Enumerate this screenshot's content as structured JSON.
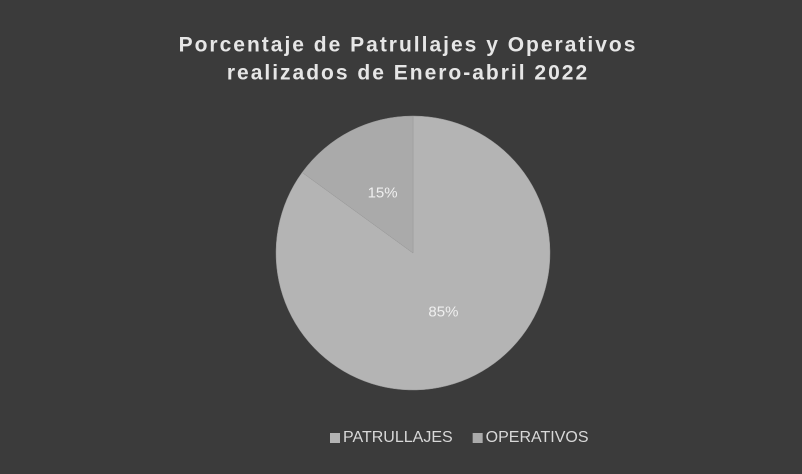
{
  "chart_data": {
    "type": "pie",
    "title": [
      "Porcentaje de Patrullajes y Operativos",
      "realizados de Enero-abril 2022"
    ],
    "categories": [
      "PATRULLAJES",
      "OPERATIVOS"
    ],
    "values": [
      85,
      15
    ],
    "value_labels": [
      "85%",
      "15%"
    ],
    "colors": [
      "#b4b4b4",
      "#aaaaaa"
    ],
    "legend": "bottom"
  }
}
